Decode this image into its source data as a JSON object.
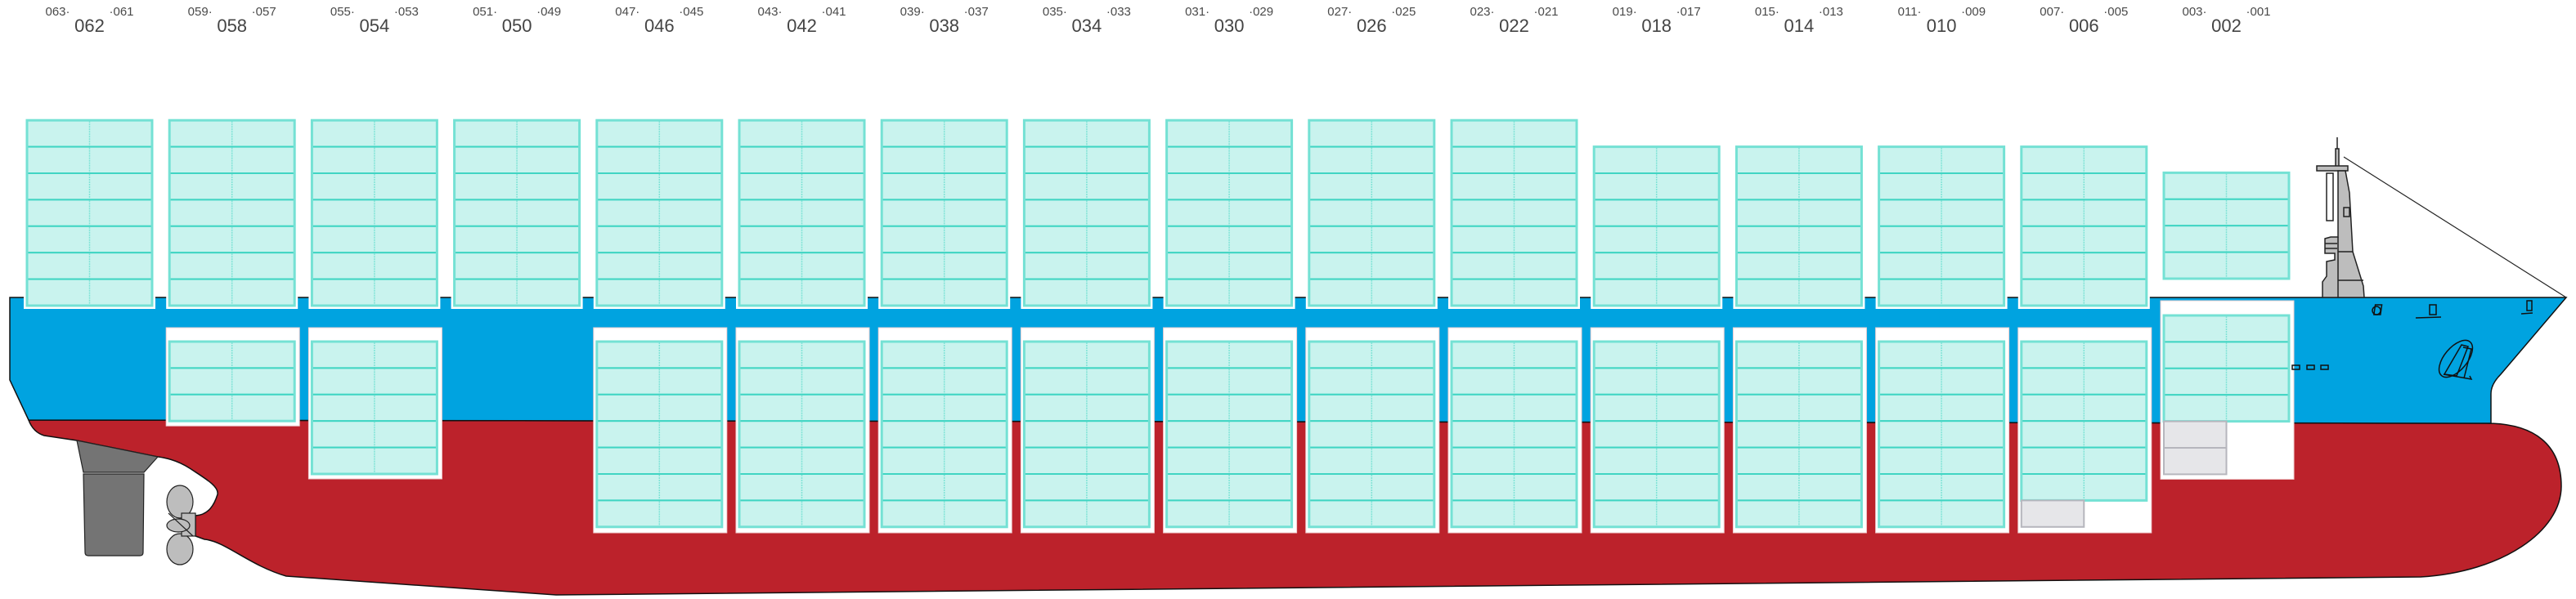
{
  "colors": {
    "hull_upper": "#00a3e0",
    "hull_lower": "#bc222b",
    "slot_fill": "#c9f3ee",
    "slot_line": "#40d5c3",
    "slot_border": "#74e1d4",
    "empty_slot_fill": "#e6e6e9",
    "empty_slot_line": "#b6b6bd",
    "machinery": "#bdbdbd",
    "rudder": "#747474"
  },
  "bays": [
    {
      "bay": "062",
      "fwd": "063·",
      "aft": "·061",
      "deck_tiers": 7,
      "hold_tiers": 0,
      "hold_empty_slots": 0
    },
    {
      "bay": "058",
      "fwd": "059·",
      "aft": "·057",
      "deck_tiers": 7,
      "hold_tiers": 3,
      "hold_empty_slots": 0
    },
    {
      "bay": "054",
      "fwd": "055·",
      "aft": "·053",
      "deck_tiers": 7,
      "hold_tiers": 5,
      "hold_empty_slots": 0
    },
    {
      "bay": "050",
      "fwd": "051·",
      "aft": "·049",
      "deck_tiers": 7,
      "hold_tiers": 0,
      "hold_empty_slots": 0
    },
    {
      "bay": "046",
      "fwd": "047·",
      "aft": "·045",
      "deck_tiers": 7,
      "hold_tiers": 7,
      "hold_empty_slots": 0
    },
    {
      "bay": "042",
      "fwd": "043·",
      "aft": "·041",
      "deck_tiers": 7,
      "hold_tiers": 7,
      "hold_empty_slots": 0
    },
    {
      "bay": "038",
      "fwd": "039·",
      "aft": "·037",
      "deck_tiers": 7,
      "hold_tiers": 7,
      "hold_empty_slots": 0
    },
    {
      "bay": "034",
      "fwd": "035·",
      "aft": "·033",
      "deck_tiers": 7,
      "hold_tiers": 7,
      "hold_empty_slots": 0
    },
    {
      "bay": "030",
      "fwd": "031·",
      "aft": "·029",
      "deck_tiers": 7,
      "hold_tiers": 7,
      "hold_empty_slots": 0
    },
    {
      "bay": "026",
      "fwd": "027·",
      "aft": "·025",
      "deck_tiers": 7,
      "hold_tiers": 7,
      "hold_empty_slots": 0
    },
    {
      "bay": "022",
      "fwd": "023·",
      "aft": "·021",
      "deck_tiers": 7,
      "hold_tiers": 7,
      "hold_empty_slots": 0
    },
    {
      "bay": "018",
      "fwd": "019·",
      "aft": "·017",
      "deck_tiers": 6,
      "hold_tiers": 7,
      "hold_empty_slots": 0
    },
    {
      "bay": "014",
      "fwd": "015·",
      "aft": "·013",
      "deck_tiers": 6,
      "hold_tiers": 7,
      "hold_empty_slots": 0
    },
    {
      "bay": "010",
      "fwd": "011·",
      "aft": "·009",
      "deck_tiers": 6,
      "hold_tiers": 7,
      "hold_empty_slots": 0
    },
    {
      "bay": "006",
      "fwd": "007·",
      "aft": "·005",
      "deck_tiers": 6,
      "hold_tiers": 6,
      "hold_empty_slots": 1
    },
    {
      "bay": "002",
      "fwd": "003·",
      "aft": "·001",
      "deck_tiers": 4,
      "hold_tiers": 4,
      "hold_empty_slots": 2
    }
  ]
}
